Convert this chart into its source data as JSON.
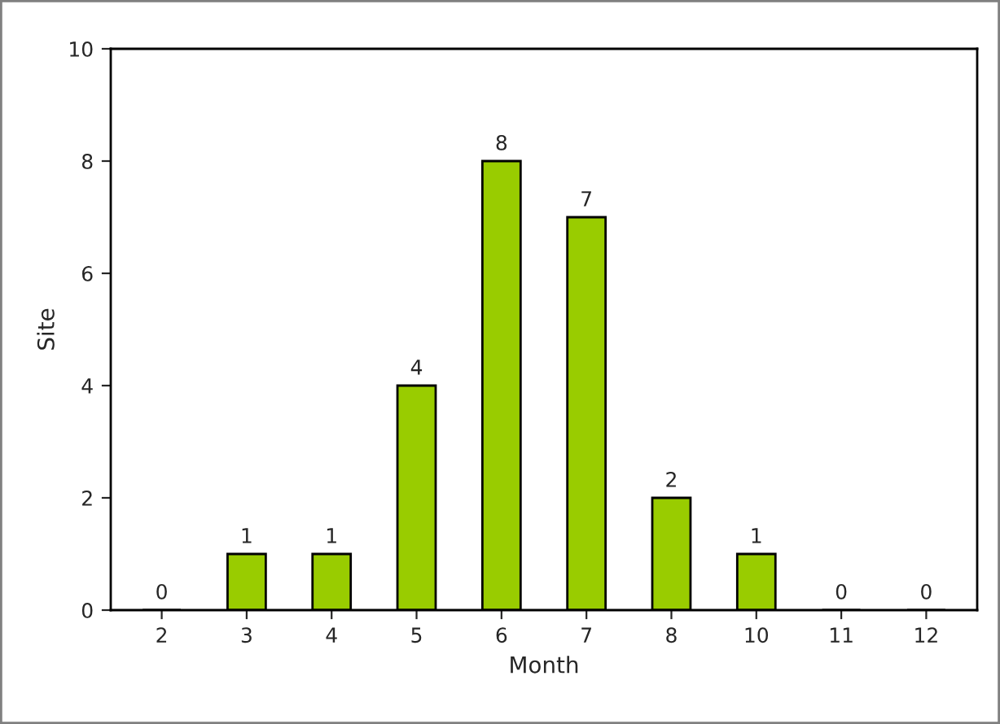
{
  "chart_data": {
    "type": "bar",
    "xlabel": "Month",
    "ylabel": "Site",
    "categories": [
      "2",
      "3",
      "4",
      "5",
      "6",
      "7",
      "8",
      "10",
      "11",
      "12"
    ],
    "values": [
      0,
      1,
      1,
      4,
      8,
      7,
      2,
      1,
      0,
      0
    ],
    "color": "#99cc00",
    "ylim": [
      0,
      10
    ],
    "yticks": [
      0,
      2,
      4,
      6,
      8,
      10
    ],
    "grid": false,
    "data_labels": true
  }
}
